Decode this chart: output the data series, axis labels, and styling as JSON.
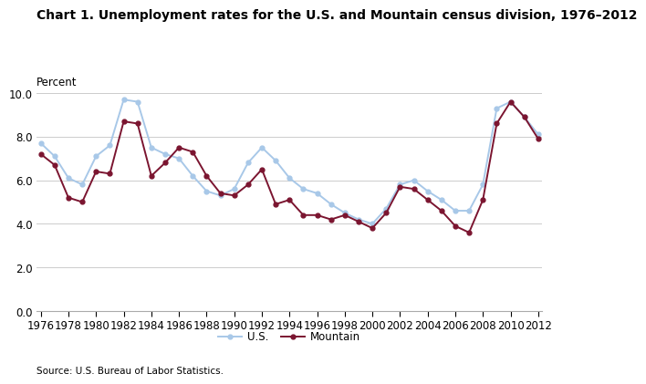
{
  "title": "Chart 1. Unemployment rates for the U.S. and Mountain census division, 1976–2012",
  "ylabel": "Percent",
  "source": "Source: U.S. Bureau of Labor Statistics.",
  "years": [
    1976,
    1977,
    1978,
    1979,
    1980,
    1981,
    1982,
    1983,
    1984,
    1985,
    1986,
    1987,
    1988,
    1989,
    1990,
    1991,
    1992,
    1993,
    1994,
    1995,
    1996,
    1997,
    1998,
    1999,
    2000,
    2001,
    2002,
    2003,
    2004,
    2005,
    2006,
    2007,
    2008,
    2009,
    2010,
    2011,
    2012
  ],
  "us_values": [
    7.7,
    7.1,
    6.1,
    5.8,
    7.1,
    7.6,
    9.7,
    9.6,
    7.5,
    7.2,
    7.0,
    6.2,
    5.5,
    5.3,
    5.6,
    6.8,
    7.5,
    6.9,
    6.1,
    5.6,
    5.4,
    4.9,
    4.5,
    4.2,
    4.0,
    4.7,
    5.8,
    6.0,
    5.5,
    5.1,
    4.6,
    4.6,
    5.8,
    9.3,
    9.6,
    8.9,
    8.1
  ],
  "mountain_values": [
    7.2,
    6.7,
    5.2,
    5.0,
    6.4,
    6.3,
    8.7,
    8.6,
    6.2,
    6.8,
    7.5,
    7.3,
    6.2,
    5.4,
    5.3,
    5.8,
    6.5,
    4.9,
    5.1,
    4.4,
    4.4,
    4.2,
    4.4,
    4.1,
    3.8,
    4.5,
    5.7,
    5.6,
    5.1,
    4.6,
    3.9,
    3.6,
    5.1,
    8.6,
    9.6,
    8.9,
    7.9
  ],
  "us_color": "#a8c8e8",
  "mountain_color": "#7b1530",
  "xlim": [
    1976,
    2012
  ],
  "ylim": [
    0.0,
    10.0
  ],
  "yticks": [
    0.0,
    2.0,
    4.0,
    6.0,
    8.0,
    10.0
  ],
  "xticks": [
    1976,
    1978,
    1980,
    1982,
    1984,
    1986,
    1988,
    1990,
    1992,
    1994,
    1996,
    1998,
    2000,
    2002,
    2004,
    2006,
    2008,
    2010,
    2012
  ],
  "legend_us": "U.S.",
  "legend_mountain": "Mountain",
  "title_fontsize": 10,
  "label_fontsize": 8.5,
  "tick_fontsize": 8.5,
  "source_fontsize": 7.5
}
